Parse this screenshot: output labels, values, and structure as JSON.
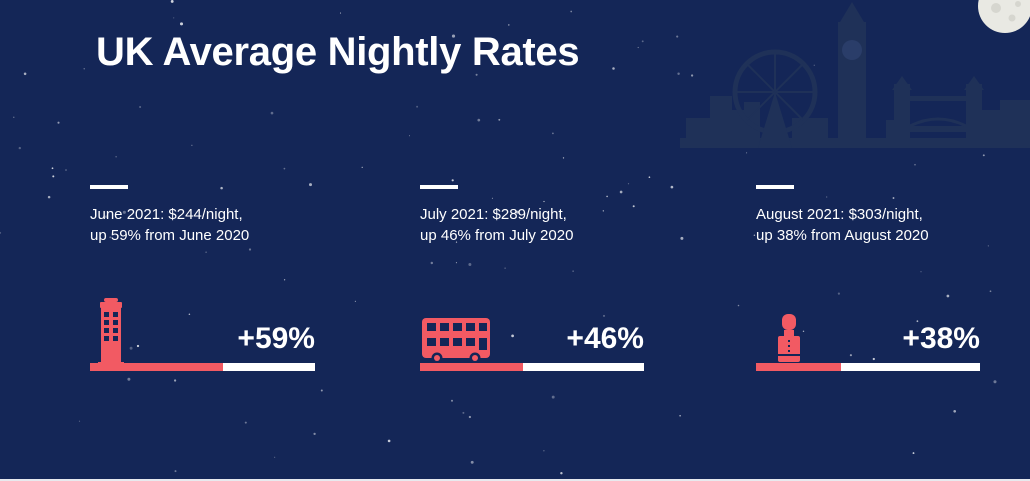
{
  "title": "UK Average Nightly Rates",
  "colors": {
    "background": "#142657",
    "accent": "#f25a63",
    "text": "#ffffff",
    "skyline": "#1f3158"
  },
  "chart_data": {
    "type": "bar",
    "title": "UK Average Nightly Rates",
    "categories": [
      "June 2021",
      "July 2021",
      "August 2021"
    ],
    "values": [
      59,
      46,
      38
    ],
    "unit": "%",
    "ylim": [
      0,
      100
    ],
    "items": [
      {
        "line1": "June 2021: $244/night,",
        "line2": "up 59% from June 2020",
        "label": "+59%",
        "value": 59,
        "icon": "phone-booth-icon"
      },
      {
        "line1": "July 2021: $289/night,",
        "line2": "up 46% from July 2020",
        "label": "+46%",
        "value": 46,
        "icon": "double-decker-bus-icon"
      },
      {
        "line1": "August 2021: $303/night,",
        "line2": "up 38% from August 2020",
        "label": "+38%",
        "value": 38,
        "icon": "royal-guard-icon"
      }
    ]
  }
}
